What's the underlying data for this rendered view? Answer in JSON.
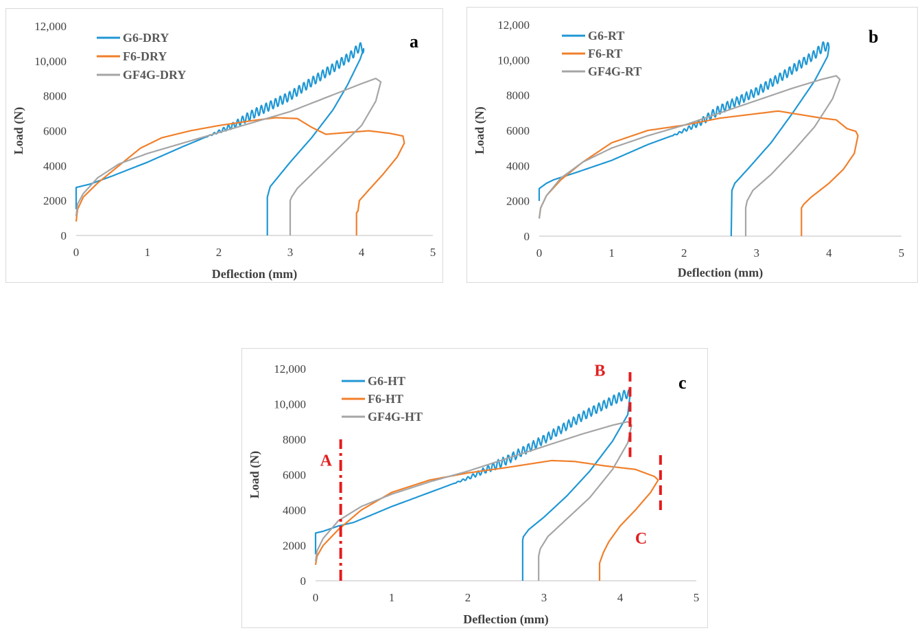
{
  "colors": {
    "G6": "#1f97d4",
    "F6": "#f07f2a",
    "GF4G": "#a5a5a5",
    "annotation": "#e51b1b",
    "axis": "#bfbfbf"
  },
  "chart_data": [
    {
      "type": "line",
      "panel_label": "a",
      "xlabel": "Deflection (mm)",
      "ylabel": "Load (N)",
      "xlim": [
        0,
        5
      ],
      "ylim": [
        0,
        12000
      ],
      "x_ticks": [
        "0",
        "1",
        "2",
        "3",
        "4",
        "5"
      ],
      "y_ticks": [
        "0",
        "2000",
        "4000",
        "6000",
        "8000",
        "10,000",
        "12,000"
      ],
      "series": [
        {
          "name": "G6-DRY",
          "color_key": "G6",
          "oscillating": true,
          "points": [
            [
              0,
              1500
            ],
            [
              0,
              2750
            ],
            [
              0.2,
              2950
            ],
            [
              0.5,
              3400
            ],
            [
              1,
              4200
            ],
            [
              1.5,
              5100
            ],
            [
              2,
              5950
            ],
            [
              2.2,
              6300
            ],
            [
              2.5,
              7000
            ],
            [
              2.8,
              7600
            ],
            [
              3,
              8000
            ],
            [
              3.3,
              8800
            ],
            [
              3.6,
              9600
            ],
            [
              3.85,
              10300
            ],
            [
              3.97,
              10800
            ],
            [
              4.03,
              10700
            ],
            [
              3.98,
              10100
            ],
            [
              3.8,
              8600
            ],
            [
              3.6,
              7200
            ],
            [
              3.3,
              5600
            ],
            [
              3.0,
              4200
            ],
            [
              2.8,
              3200
            ],
            [
              2.72,
              2800
            ],
            [
              2.68,
              2200
            ],
            [
              2.68,
              0
            ]
          ]
        },
        {
          "name": "F6-DRY",
          "color_key": "F6",
          "oscillating": false,
          "points": [
            [
              0,
              800
            ],
            [
              0.02,
              1500
            ],
            [
              0.1,
              2200
            ],
            [
              0.3,
              3000
            ],
            [
              0.6,
              4000
            ],
            [
              0.9,
              5000
            ],
            [
              1.2,
              5600
            ],
            [
              1.6,
              6000
            ],
            [
              2,
              6300
            ],
            [
              2.5,
              6600
            ],
            [
              2.8,
              6750
            ],
            [
              3.1,
              6700
            ],
            [
              3.3,
              6200
            ],
            [
              3.5,
              5800
            ],
            [
              3.8,
              5900
            ],
            [
              4.1,
              6000
            ],
            [
              4.4,
              5850
            ],
            [
              4.58,
              5700
            ],
            [
              4.6,
              5300
            ],
            [
              4.5,
              4500
            ],
            [
              4.3,
              3500
            ],
            [
              4.1,
              2600
            ],
            [
              3.97,
              2000
            ],
            [
              3.95,
              1400
            ],
            [
              3.93,
              1300
            ],
            [
              3.93,
              0
            ]
          ]
        },
        {
          "name": "GF4G-DRY",
          "color_key": "GF4G",
          "oscillating": false,
          "points": [
            [
              0,
              1100
            ],
            [
              0.02,
              1800
            ],
            [
              0.1,
              2400
            ],
            [
              0.3,
              3300
            ],
            [
              0.6,
              4100
            ],
            [
              1,
              4700
            ],
            [
              1.5,
              5300
            ],
            [
              2,
              5900
            ],
            [
              2.5,
              6500
            ],
            [
              3,
              7100
            ],
            [
              3.5,
              7900
            ],
            [
              4,
              8700
            ],
            [
              4.2,
              9000
            ],
            [
              4.27,
              8800
            ],
            [
              4.2,
              7700
            ],
            [
              4.0,
              6300
            ],
            [
              3.7,
              5100
            ],
            [
              3.4,
              3900
            ],
            [
              3.1,
              2700
            ],
            [
              3.02,
              2200
            ],
            [
              3.0,
              2000
            ],
            [
              3.0,
              0
            ]
          ]
        }
      ]
    },
    {
      "type": "line",
      "panel_label": "b",
      "xlabel": "Deflection (mm)",
      "ylabel": "Load (N)",
      "xlim": [
        0,
        5
      ],
      "ylim": [
        0,
        12000
      ],
      "x_ticks": [
        "0",
        "1",
        "2",
        "3",
        "4",
        "5"
      ],
      "y_ticks": [
        "0",
        "2000",
        "4000",
        "6000",
        "8000",
        "10,000",
        "12,000"
      ],
      "series": [
        {
          "name": "G6-RT",
          "color_key": "G6",
          "oscillating": true,
          "points": [
            [
              0,
              2000
            ],
            [
              0,
              2700
            ],
            [
              0.1,
              3000
            ],
            [
              0.2,
              3200
            ],
            [
              0.5,
              3600
            ],
            [
              1,
              4300
            ],
            [
              1.5,
              5200
            ],
            [
              1.9,
              5800
            ],
            [
              2.2,
              6400
            ],
            [
              2.5,
              7200
            ],
            [
              3,
              8200
            ],
            [
              3.4,
              9200
            ],
            [
              3.8,
              10300
            ],
            [
              3.93,
              10800
            ],
            [
              4.0,
              10700
            ],
            [
              3.98,
              10200
            ],
            [
              3.8,
              8800
            ],
            [
              3.5,
              7000
            ],
            [
              3.2,
              5300
            ],
            [
              2.9,
              3900
            ],
            [
              2.7,
              3000
            ],
            [
              2.66,
              2600
            ],
            [
              2.65,
              0
            ]
          ]
        },
        {
          "name": "F6-RT",
          "color_key": "F6",
          "oscillating": false,
          "points": [
            [
              0,
              1000
            ],
            [
              0.02,
              1600
            ],
            [
              0.1,
              2300
            ],
            [
              0.3,
              3200
            ],
            [
              0.6,
              4200
            ],
            [
              1,
              5300
            ],
            [
              1.5,
              6000
            ],
            [
              2,
              6300
            ],
            [
              2.5,
              6700
            ],
            [
              3,
              6950
            ],
            [
              3.3,
              7100
            ],
            [
              3.6,
              6900
            ],
            [
              3.9,
              6700
            ],
            [
              4.1,
              6600
            ],
            [
              4.25,
              6100
            ],
            [
              4.37,
              5950
            ],
            [
              4.4,
              5700
            ],
            [
              4.35,
              4700
            ],
            [
              4.2,
              3800
            ],
            [
              4.0,
              3000
            ],
            [
              3.75,
              2200
            ],
            [
              3.65,
              1800
            ],
            [
              3.62,
              1600
            ],
            [
              3.62,
              0
            ]
          ]
        },
        {
          "name": "GF4G-RT",
          "color_key": "GF4G",
          "oscillating": false,
          "points": [
            [
              0,
              1000
            ],
            [
              0.02,
              1600
            ],
            [
              0.1,
              2300
            ],
            [
              0.3,
              3300
            ],
            [
              0.6,
              4200
            ],
            [
              1,
              5000
            ],
            [
              1.5,
              5700
            ],
            [
              2,
              6300
            ],
            [
              2.5,
              7000
            ],
            [
              3,
              7700
            ],
            [
              3.5,
              8400
            ],
            [
              3.9,
              8900
            ],
            [
              4.1,
              9100
            ],
            [
              4.15,
              8900
            ],
            [
              4.05,
              7800
            ],
            [
              3.8,
              6200
            ],
            [
              3.5,
              4800
            ],
            [
              3.2,
              3500
            ],
            [
              2.95,
              2600
            ],
            [
              2.87,
              2000
            ],
            [
              2.85,
              1600
            ],
            [
              2.85,
              0
            ]
          ]
        }
      ]
    },
    {
      "type": "line",
      "panel_label": "c",
      "xlabel": "Deflection (mm)",
      "ylabel": "Load (N)",
      "xlim": [
        0,
        5
      ],
      "ylim": [
        0,
        12000
      ],
      "x_ticks": [
        "0",
        "1",
        "2",
        "3",
        "4",
        "5"
      ],
      "y_ticks": [
        "0",
        "2000",
        "4000",
        "6000",
        "8000",
        "10,000",
        "12,000"
      ],
      "series": [
        {
          "name": "G6-HT",
          "color_key": "G6",
          "oscillating": true,
          "points": [
            [
              0,
              1500
            ],
            [
              0,
              2700
            ],
            [
              0.1,
              2800
            ],
            [
              0.3,
              3100
            ],
            [
              0.5,
              3300
            ],
            [
              1,
              4200
            ],
            [
              1.5,
              5000
            ],
            [
              2,
              5800
            ],
            [
              2.5,
              6800
            ],
            [
              3,
              8000
            ],
            [
              3.5,
              9300
            ],
            [
              3.9,
              10200
            ],
            [
              4.1,
              10600
            ],
            [
              4.13,
              10500
            ],
            [
              4.1,
              9400
            ],
            [
              3.9,
              7900
            ],
            [
              3.6,
              6200
            ],
            [
              3.3,
              4800
            ],
            [
              3.0,
              3600
            ],
            [
              2.8,
              2900
            ],
            [
              2.73,
              2500
            ],
            [
              2.72,
              2300
            ],
            [
              2.72,
              0
            ]
          ]
        },
        {
          "name": "F6-HT",
          "color_key": "F6",
          "oscillating": false,
          "points": [
            [
              0,
              900
            ],
            [
              0.02,
              1400
            ],
            [
              0.1,
              2000
            ],
            [
              0.3,
              2900
            ],
            [
              0.6,
              4000
            ],
            [
              1,
              5000
            ],
            [
              1.5,
              5700
            ],
            [
              2,
              6100
            ],
            [
              2.5,
              6400
            ],
            [
              3.1,
              6800
            ],
            [
              3.4,
              6750
            ],
            [
              3.8,
              6500
            ],
            [
              4.2,
              6300
            ],
            [
              4.45,
              5900
            ],
            [
              4.5,
              5700
            ],
            [
              4.4,
              5000
            ],
            [
              4.2,
              4000
            ],
            [
              4.0,
              3100
            ],
            [
              3.85,
              2200
            ],
            [
              3.78,
              1600
            ],
            [
              3.73,
              1000
            ],
            [
              3.73,
              0
            ]
          ]
        },
        {
          "name": "GF4G-HT",
          "color_key": "GF4G",
          "oscillating": false,
          "points": [
            [
              0,
              1100
            ],
            [
              0.02,
              1700
            ],
            [
              0.1,
              2400
            ],
            [
              0.3,
              3400
            ],
            [
              0.6,
              4200
            ],
            [
              1,
              4900
            ],
            [
              1.5,
              5600
            ],
            [
              2,
              6200
            ],
            [
              2.5,
              6900
            ],
            [
              3,
              7600
            ],
            [
              3.5,
              8300
            ],
            [
              3.9,
              8800
            ],
            [
              4.1,
              9000
            ],
            [
              4.15,
              8800
            ],
            [
              4.1,
              7800
            ],
            [
              3.9,
              6300
            ],
            [
              3.6,
              4700
            ],
            [
              3.3,
              3500
            ],
            [
              3.05,
              2500
            ],
            [
              2.95,
              1800
            ],
            [
              2.93,
              1400
            ],
            [
              2.93,
              0
            ]
          ]
        }
      ],
      "annotations": [
        {
          "label": "A",
          "x": 0.33,
          "y_range": [
            0,
            8000
          ]
        },
        {
          "label": "B",
          "x": 4.13,
          "y_range": [
            7000,
            11800
          ]
        },
        {
          "label": "C",
          "x": 4.53,
          "y_range": [
            4000,
            7200
          ]
        }
      ]
    }
  ]
}
